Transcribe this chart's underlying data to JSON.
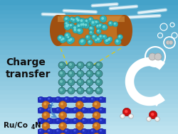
{
  "bg_top_color": "#b0dce8",
  "bg_bottom_color": "#50b0d0",
  "title_line1": "Charge",
  "title_line2": "transfer",
  "label": "Ru/Co",
  "label_sub": "4",
  "label_end": "N",
  "tube_color_dark": "#a05010",
  "tube_color_mid": "#c07020",
  "tube_color_light": "#d09040",
  "tube_dot": "#30b0b8",
  "tube_dot_hi": "#70d8d8",
  "grid_node": "#409898",
  "grid_node_hi": "#70c0c0",
  "grid_line": "#308080",
  "layer_blue_dark": "#1820a8",
  "layer_blue": "#2030c0",
  "layer_blue_hi": "#4858e0",
  "layer_orange_dark": "#a05010",
  "layer_orange": "#c87020",
  "layer_orange_hi": "#e8a040",
  "arrow_white": "#ffffff",
  "water_O": "#cc1010",
  "water_H": "#e8e8e8",
  "text_dark": "#101010",
  "yellow_line": "#d8c820",
  "electron_arrow": "#5090d0",
  "electron_text": "#2050a8"
}
